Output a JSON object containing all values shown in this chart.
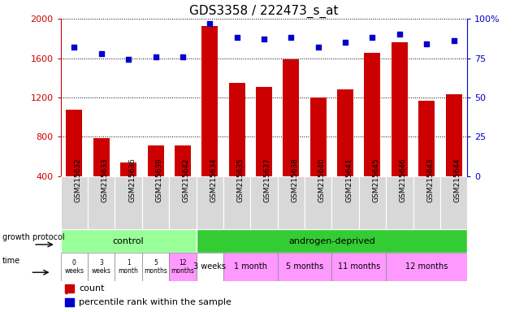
{
  "title": "GDS3358 / 222473_s_at",
  "samples": [
    "GSM215632",
    "GSM215633",
    "GSM215636",
    "GSM215639",
    "GSM215642",
    "GSM215634",
    "GSM215635",
    "GSM215637",
    "GSM215638",
    "GSM215640",
    "GSM215641",
    "GSM215645",
    "GSM215646",
    "GSM215643",
    "GSM215644"
  ],
  "counts": [
    1080,
    790,
    540,
    710,
    710,
    1930,
    1350,
    1310,
    1590,
    1200,
    1280,
    1650,
    1760,
    1170,
    1230
  ],
  "percentiles": [
    82,
    78,
    74,
    76,
    76,
    97,
    88,
    87,
    88,
    82,
    85,
    88,
    90,
    84,
    86
  ],
  "ylim_left": [
    400,
    2000
  ],
  "ylim_right": [
    0,
    100
  ],
  "yticks_left": [
    400,
    800,
    1200,
    1600,
    2000
  ],
  "yticks_right": [
    0,
    25,
    50,
    75,
    100
  ],
  "bar_color": "#cc0000",
  "dot_color": "#0000cc",
  "bg_color": "#ffffff",
  "plot_bg": "#ffffff",
  "xticklabel_bg": "#d8d8d8",
  "control_color": "#99ff99",
  "androgen_color": "#33cc33",
  "time_control_colors": [
    "#ffffff",
    "#ffffff",
    "#ffffff",
    "#ffffff",
    "#ff99ff"
  ],
  "time_androgen_colors": [
    "#ffffff",
    "#ff99ff",
    "#ff99ff",
    "#ff99ff",
    "#ff99ff"
  ],
  "time_control_labels": [
    "0\nweeks",
    "3\nweeks",
    "1\nmonth",
    "5\nmonths",
    "12\nmonths"
  ],
  "time_androgen_labels": [
    "3 weeks",
    "1 month",
    "5 months",
    "11 months",
    "12 months"
  ],
  "control_sample_count": 5,
  "androgen_sample_count": 10,
  "tick_label_color_left": "#cc0000",
  "tick_label_color_right": "#0000cc",
  "title_fontsize": 11,
  "sample_fontsize": 6.5,
  "anno_fontsize": 8,
  "legend_fontsize": 8,
  "andr_groups": [
    [
      5,
      1,
      "3 weeks",
      "#ffffff"
    ],
    [
      6,
      2,
      "1 month",
      "#ff99ff"
    ],
    [
      8,
      2,
      "5 months",
      "#ff99ff"
    ],
    [
      10,
      2,
      "11 months",
      "#ff99ff"
    ],
    [
      12,
      3,
      "12 months",
      "#ff99ff"
    ]
  ]
}
